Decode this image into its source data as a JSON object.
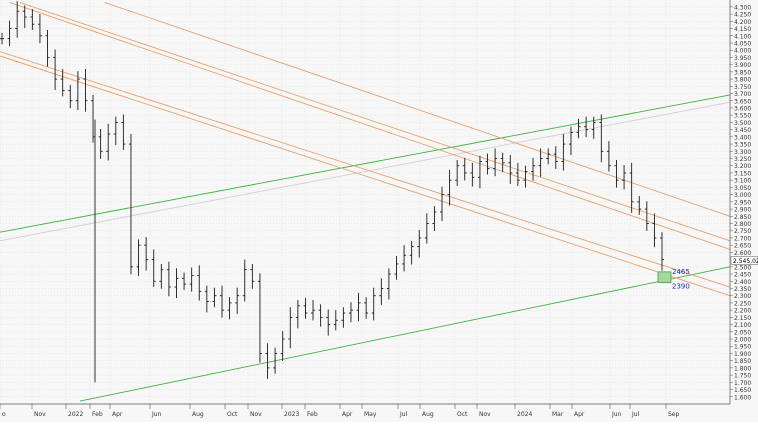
{
  "chart_data": {
    "type": "ohlc",
    "title": "",
    "xlabel": "",
    "ylabel": "",
    "ylim": [
      1550,
      4320
    ],
    "grid": true,
    "last_price_label": "2.545,02",
    "x_ticks": [
      "o",
      "Nov",
      "2022",
      "Feb",
      "Apr",
      "Jun",
      "Aug",
      "Oct",
      "Nov",
      "2023",
      "Feb",
      "Apr",
      "May",
      "Jul",
      "Aug",
      "Oct",
      "Nov",
      "2024",
      "Mar",
      "Apr",
      "Jun",
      "Jul",
      "Sep"
    ],
    "y_ticks": [
      "4.300",
      "4.250",
      "4.200",
      "4.150",
      "4.100",
      "4.050",
      "4.000",
      "3.950",
      "3.900",
      "3.850",
      "3.800",
      "3.750",
      "3.700",
      "3.650",
      "3.600",
      "3.550",
      "3.500",
      "3.450",
      "3.400",
      "3.350",
      "3.300",
      "3.250",
      "3.200",
      "3.150",
      "3.100",
      "3.050",
      "3.000",
      "2.950",
      "2.900",
      "2.850",
      "2.800",
      "2.750",
      "2.700",
      "2.650",
      "2.600",
      "2.500",
      "2.450",
      "2.400",
      "2.350",
      "2.300",
      "2.250",
      "2.200",
      "2.150",
      "2.100",
      "2.050",
      "2.000",
      "1.950",
      "1.900",
      "1.850",
      "1.800",
      "1.750",
      "1.700",
      "1.650",
      "1.600"
    ],
    "y_tick_values": [
      4300,
      4250,
      4200,
      4150,
      4100,
      4050,
      4000,
      3950,
      3900,
      3850,
      3800,
      3750,
      3700,
      3650,
      3600,
      3550,
      3500,
      3450,
      3400,
      3350,
      3300,
      3250,
      3200,
      3150,
      3100,
      3050,
      3000,
      2950,
      2900,
      2850,
      2800,
      2750,
      2700,
      2650,
      2600,
      2500,
      2450,
      2400,
      2350,
      2300,
      2250,
      2200,
      2150,
      2100,
      2050,
      2000,
      1950,
      1900,
      1850,
      1800,
      1750,
      1700,
      1650,
      1600
    ],
    "price_path": [
      [
        0,
        4080
      ],
      [
        1,
        4150
      ],
      [
        2,
        4270
      ],
      [
        3,
        4230
      ],
      [
        4,
        4180
      ],
      [
        5,
        4100
      ],
      [
        6,
        3950
      ],
      [
        7,
        3800
      ],
      [
        8,
        3720
      ],
      [
        9,
        3650
      ],
      [
        10,
        3800
      ],
      [
        11,
        3650
      ],
      [
        12,
        3400
      ],
      [
        13,
        3300
      ],
      [
        14,
        3420
      ],
      [
        15,
        3500
      ],
      [
        16,
        3350
      ],
      [
        17,
        2500
      ],
      [
        18,
        2650
      ],
      [
        19,
        2550
      ],
      [
        20,
        2400
      ],
      [
        21,
        2480
      ],
      [
        22,
        2360
      ],
      [
        23,
        2420
      ],
      [
        24,
        2380
      ],
      [
        25,
        2440
      ],
      [
        26,
        2330
      ],
      [
        27,
        2260
      ],
      [
        28,
        2300
      ],
      [
        29,
        2200
      ],
      [
        30,
        2250
      ],
      [
        31,
        2300
      ],
      [
        32,
        2480
      ],
      [
        33,
        2400
      ],
      [
        34,
        1900
      ],
      [
        35,
        1800
      ],
      [
        36,
        1900
      ],
      [
        37,
        2000
      ],
      [
        38,
        2150
      ],
      [
        39,
        2230
      ],
      [
        40,
        2180
      ],
      [
        41,
        2200
      ],
      [
        42,
        2150
      ],
      [
        43,
        2100
      ],
      [
        44,
        2130
      ],
      [
        45,
        2180
      ],
      [
        46,
        2200
      ],
      [
        47,
        2250
      ],
      [
        48,
        2180
      ],
      [
        49,
        2300
      ],
      [
        50,
        2350
      ],
      [
        51,
        2450
      ],
      [
        52,
        2520
      ],
      [
        53,
        2580
      ],
      [
        54,
        2640
      ],
      [
        55,
        2700
      ],
      [
        56,
        2800
      ],
      [
        57,
        2880
      ],
      [
        58,
        3000
      ],
      [
        59,
        3100
      ],
      [
        60,
        3200
      ],
      [
        61,
        3150
      ],
      [
        62,
        3120
      ],
      [
        63,
        3230
      ],
      [
        64,
        3180
      ],
      [
        65,
        3250
      ],
      [
        66,
        3220
      ],
      [
        67,
        3150
      ],
      [
        68,
        3100
      ],
      [
        69,
        3160
      ],
      [
        70,
        3200
      ],
      [
        71,
        3250
      ],
      [
        72,
        3280
      ],
      [
        73,
        3230
      ],
      [
        74,
        3350
      ],
      [
        75,
        3430
      ],
      [
        76,
        3470
      ],
      [
        77,
        3450
      ],
      [
        78,
        3500
      ],
      [
        79,
        3300
      ],
      [
        80,
        3200
      ],
      [
        81,
        3100
      ],
      [
        82,
        3150
      ],
      [
        83,
        2950
      ],
      [
        84,
        2900
      ],
      [
        85,
        2800
      ],
      [
        86,
        2700
      ],
      [
        87,
        2550
      ]
    ],
    "trendlines": [
      {
        "color": "#3db33d",
        "kind": "upper-channel"
      },
      {
        "color": "#3db33d",
        "kind": "lower-channel"
      },
      {
        "color": "#d2d2d2",
        "kind": "mid"
      },
      {
        "color": "#e8a06a",
        "kind": "descending-1"
      },
      {
        "color": "#e8a06a",
        "kind": "descending-2"
      },
      {
        "color": "#e8a06a",
        "kind": "descending-3"
      },
      {
        "color": "#e8a06a",
        "kind": "descending-4"
      }
    ],
    "target_box": {
      "label_top": "2465",
      "label_bottom": "2390",
      "high": 2465,
      "low": 2390
    },
    "colors": {
      "bars": "#1a1a1a",
      "green": "#3db33d",
      "orange": "#e8a06a",
      "grid": "#d9d9d9",
      "label": "#1f2bb3",
      "box_fill": "#9fd99f"
    }
  }
}
